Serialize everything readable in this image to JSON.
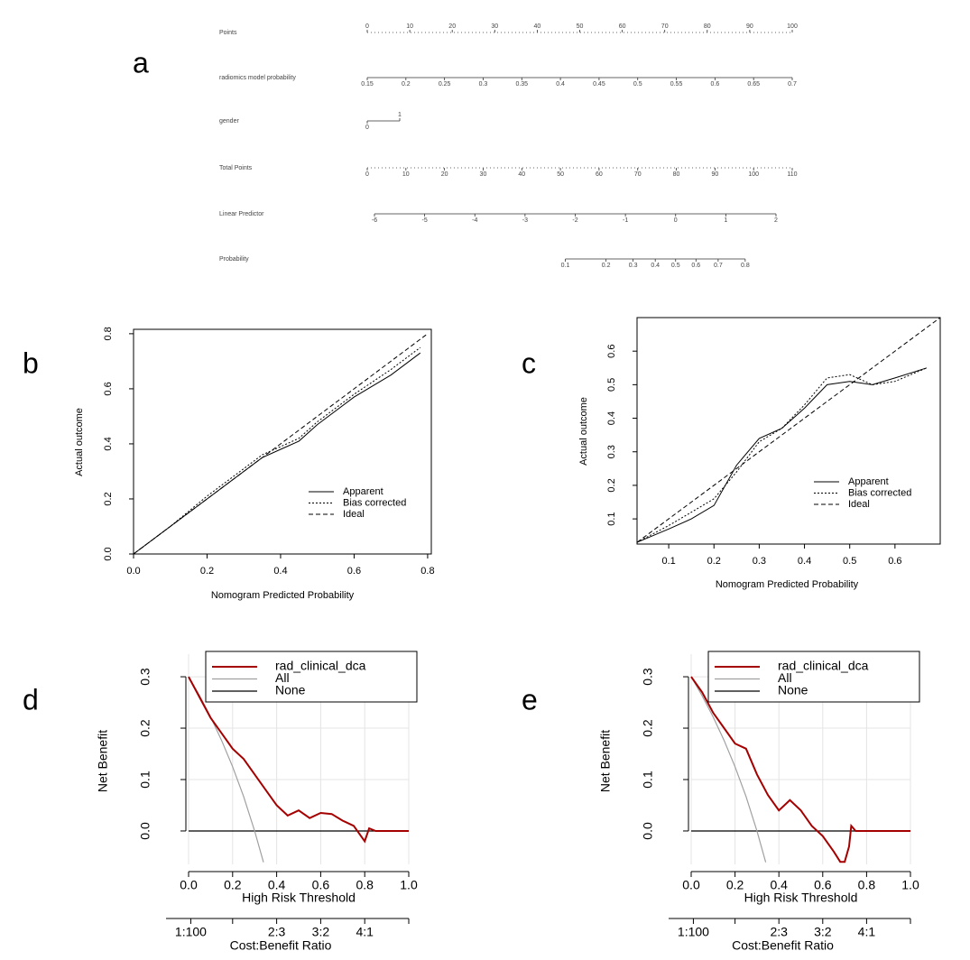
{
  "chart_data": [
    {
      "type": "nomogram",
      "panel_label": "a",
      "scales": [
        {
          "name": "Points",
          "xlim": [
            0,
            100
          ],
          "ticks": [
            0,
            10,
            20,
            30,
            40,
            50,
            60,
            70,
            80,
            90,
            100
          ]
        },
        {
          "name": "radiomics model probability",
          "xlim": [
            0.15,
            0.7
          ],
          "ticks": [
            0.15,
            0.2,
            0.25,
            0.3,
            0.35,
            0.4,
            0.45,
            0.5,
            0.55,
            0.6,
            0.65,
            0.7
          ]
        },
        {
          "name": "gender",
          "xlim": [
            0,
            1
          ],
          "ticks": [
            0,
            1
          ]
        },
        {
          "name": "Total Points",
          "xlim": [
            0,
            110
          ],
          "ticks": [
            0,
            10,
            20,
            30,
            40,
            50,
            60,
            70,
            80,
            90,
            100,
            110
          ]
        },
        {
          "name": "Linear Predictor",
          "xlim": [
            -6,
            2
          ],
          "ticks": [
            -6,
            -5,
            -4,
            -3,
            -2,
            -1,
            0,
            1,
            2
          ]
        },
        {
          "name": "Probability",
          "xlim": [
            0.1,
            0.8
          ],
          "ticks": [
            0.1,
            0.2,
            0.3,
            0.4,
            0.5,
            0.6,
            0.7,
            0.8
          ],
          "scale": "logit"
        }
      ]
    },
    {
      "type": "calibration",
      "panel_label": "b",
      "xlabel": "Nomogram Predicted Probability",
      "ylabel": "Actual outcome",
      "xlim": [
        0,
        0.81
      ],
      "ylim": [
        0,
        0.816
      ],
      "xticks": [
        {
          "value": 0,
          "label": "0.0"
        },
        0.2,
        0.4,
        0.6,
        0.8
      ],
      "yticks": [
        {
          "value": 0,
          "label": "0.0"
        },
        0.2,
        0.4,
        0.6,
        0.8
      ],
      "series": [
        {
          "name": "Apparent",
          "color": "#000000",
          "line_style": "solid",
          "x": [
            0,
            0.1,
            0.2,
            0.3,
            0.35,
            0.4,
            0.45,
            0.5,
            0.6,
            0.7,
            0.78
          ],
          "values": [
            0,
            0.1,
            0.2,
            0.3,
            0.35,
            0.38,
            0.41,
            0.47,
            0.57,
            0.65,
            0.73
          ]
        },
        {
          "name": "Bias corrected",
          "color": "#000000",
          "line_style": "dotted",
          "x": [
            0,
            0.1,
            0.2,
            0.3,
            0.35,
            0.4,
            0.45,
            0.5,
            0.6,
            0.7,
            0.78
          ],
          "values": [
            0,
            0.1,
            0.21,
            0.31,
            0.36,
            0.39,
            0.42,
            0.48,
            0.58,
            0.67,
            0.75
          ]
        },
        {
          "name": "Ideal",
          "color": "#000000",
          "line_style": "dashed",
          "x": [
            0,
            0.8
          ],
          "values": [
            0,
            0.8
          ]
        }
      ]
    },
    {
      "type": "calibration",
      "panel_label": "c",
      "xlabel": "Nomogram Predicted Probability",
      "ylabel": "Actual outcome",
      "xlim": [
        0.03,
        0.7
      ],
      "ylim": [
        0.025,
        0.7
      ],
      "xticks": [
        0.1,
        0.2,
        0.3,
        0.4,
        0.5,
        0.6
      ],
      "yticks": [
        0.1,
        0.2,
        0.3,
        0.4,
        0.5,
        0.6
      ],
      "series": [
        {
          "name": "Apparent",
          "color": "#000000",
          "line_style": "solid",
          "x": [
            0.03,
            0.1,
            0.15,
            0.2,
            0.25,
            0.3,
            0.35,
            0.4,
            0.45,
            0.5,
            0.55,
            0.6,
            0.67
          ],
          "values": [
            0.03,
            0.07,
            0.1,
            0.14,
            0.26,
            0.34,
            0.37,
            0.43,
            0.5,
            0.51,
            0.5,
            0.52,
            0.55
          ]
        },
        {
          "name": "Bias corrected",
          "color": "#000000",
          "line_style": "dotted",
          "x": [
            0.03,
            0.1,
            0.15,
            0.2,
            0.25,
            0.3,
            0.35,
            0.4,
            0.45,
            0.5,
            0.55,
            0.6,
            0.67
          ],
          "values": [
            0.03,
            0.08,
            0.12,
            0.16,
            0.24,
            0.33,
            0.37,
            0.44,
            0.52,
            0.53,
            0.5,
            0.51,
            0.55
          ]
        },
        {
          "name": "Ideal",
          "color": "#000000",
          "line_style": "dashed",
          "x": [
            0.03,
            0.7
          ],
          "values": [
            0.03,
            0.7
          ]
        }
      ]
    },
    {
      "type": "dca",
      "panel_label": "d",
      "xlabel": "High Risk Threshold",
      "ylabel": "Net Benefit",
      "x2label": "Cost:Benefit Ratio",
      "xlim": [
        0,
        1
      ],
      "ylim": [
        -0.065,
        0.344
      ],
      "grid": true,
      "xticks": [
        {
          "value": 0,
          "label": "0.0"
        },
        0.2,
        0.4,
        0.6,
        0.8,
        {
          "value": 1,
          "label": "1.0"
        }
      ],
      "yticks": [
        {
          "value": 0,
          "label": "0.0"
        },
        0.1,
        0.2,
        0.3
      ],
      "x2ticks": [
        {
          "value": 0.01,
          "label": "1:100"
        },
        {
          "value": 0.2,
          "label": null
        },
        {
          "value": 0.4,
          "label": "2:3"
        },
        {
          "value": 0.6,
          "label": "3:2"
        },
        {
          "value": 0.8,
          "label": "4:1"
        },
        {
          "value": 1,
          "label": null
        }
      ],
      "series": [
        {
          "name": "rad_clinical_dca",
          "color": "#a50000",
          "x": [
            0,
            0.05,
            0.1,
            0.15,
            0.2,
            0.25,
            0.3,
            0.35,
            0.4,
            0.45,
            0.5,
            0.55,
            0.6,
            0.65,
            0.7,
            0.75,
            0.8,
            0.82,
            0.85,
            0.9,
            1
          ],
          "values": [
            0.3,
            0.26,
            0.22,
            0.19,
            0.16,
            0.14,
            0.11,
            0.08,
            0.05,
            0.03,
            0.04,
            0.025,
            0.035,
            0.033,
            0.02,
            0.01,
            -0.02,
            0.005,
            0,
            0,
            0
          ]
        },
        {
          "name": "All",
          "color": "#a0a0a0",
          "x": [
            0,
            0.05,
            0.1,
            0.15,
            0.2,
            0.25,
            0.3,
            0.34
          ],
          "values": [
            0.3,
            0.263,
            0.222,
            0.176,
            0.125,
            0.067,
            0,
            -0.061
          ]
        },
        {
          "name": "None",
          "color": "#000000",
          "x": [
            0,
            1
          ],
          "values": [
            0,
            0
          ]
        }
      ]
    },
    {
      "type": "dca",
      "panel_label": "e",
      "xlabel": "High Risk Threshold",
      "ylabel": "Net Benefit",
      "x2label": "Cost:Benefit Ratio",
      "xlim": [
        0,
        1
      ],
      "ylim": [
        -0.065,
        0.344
      ],
      "grid": true,
      "xticks": [
        {
          "value": 0,
          "label": "0.0"
        },
        0.2,
        0.4,
        0.6,
        0.8,
        {
          "value": 1,
          "label": "1.0"
        }
      ],
      "yticks": [
        {
          "value": 0,
          "label": "0.0"
        },
        0.1,
        0.2,
        0.3
      ],
      "x2ticks": [
        {
          "value": 0.01,
          "label": "1:100"
        },
        {
          "value": 0.2,
          "label": null
        },
        {
          "value": 0.4,
          "label": "2:3"
        },
        {
          "value": 0.6,
          "label": "3:2"
        },
        {
          "value": 0.8,
          "label": "4:1"
        },
        {
          "value": 1,
          "label": null
        }
      ],
      "series": [
        {
          "name": "rad_clinical_dca",
          "color": "#a50000",
          "x": [
            0,
            0.05,
            0.1,
            0.15,
            0.2,
            0.25,
            0.3,
            0.35,
            0.4,
            0.45,
            0.5,
            0.55,
            0.6,
            0.65,
            0.68,
            0.7,
            0.72,
            0.73,
            0.75,
            0.8,
            0.9,
            1
          ],
          "values": [
            0.3,
            0.27,
            0.23,
            0.2,
            0.17,
            0.16,
            0.11,
            0.07,
            0.04,
            0.06,
            0.04,
            0.01,
            -0.01,
            -0.04,
            -0.06,
            -0.06,
            -0.03,
            0.01,
            0,
            0,
            0,
            0
          ]
        },
        {
          "name": "All",
          "color": "#a0a0a0",
          "x": [
            0,
            0.05,
            0.1,
            0.15,
            0.2,
            0.25,
            0.3,
            0.34
          ],
          "values": [
            0.3,
            0.263,
            0.222,
            0.176,
            0.125,
            0.067,
            0,
            -0.061
          ]
        },
        {
          "name": "None",
          "color": "#000000",
          "x": [
            0,
            1
          ],
          "values": [
            0,
            0
          ]
        }
      ]
    }
  ]
}
